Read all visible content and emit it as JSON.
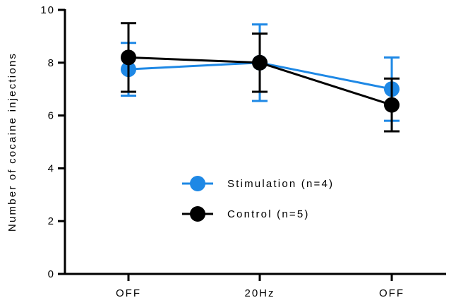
{
  "chart_data": {
    "type": "line",
    "title": "",
    "xlabel": "",
    "ylabel": "Number of cocaine injections",
    "categories": [
      "OFF",
      "20Hz",
      "OFF"
    ],
    "ylim": [
      0,
      10
    ],
    "yticks": [
      0,
      2,
      4,
      6,
      8,
      10
    ],
    "grid": false,
    "legend_position": "center-right",
    "error_bars": true,
    "series": [
      {
        "name": "Stimulation (n=4)",
        "color": "#1E88E5",
        "values": [
          7.75,
          8.0,
          7.0
        ],
        "error": [
          1.0,
          1.45,
          1.2
        ]
      },
      {
        "name": "Control (n=5)",
        "color": "#000000",
        "values": [
          8.2,
          8.0,
          6.4
        ],
        "error": [
          1.3,
          1.1,
          1.0
        ]
      }
    ]
  }
}
